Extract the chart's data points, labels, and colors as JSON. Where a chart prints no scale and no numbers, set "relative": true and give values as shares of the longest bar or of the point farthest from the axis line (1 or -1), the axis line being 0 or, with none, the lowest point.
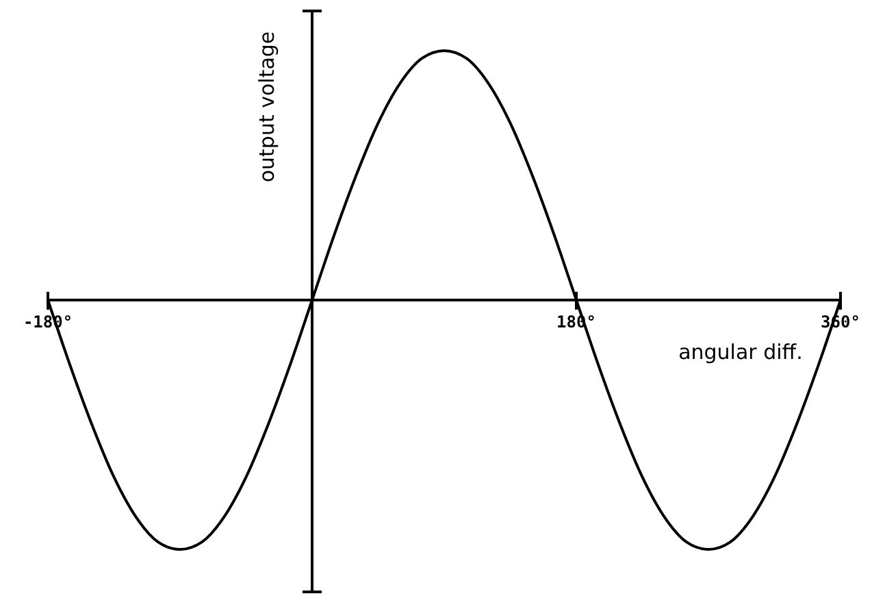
{
  "chart_data": {
    "type": "line",
    "xlabel": "angular diff.",
    "ylabel": "output voltage",
    "relative": true,
    "color": "#000000",
    "x": [
      -180,
      -165,
      -150,
      -135,
      -120,
      -105,
      -90,
      -75,
      -60,
      -45,
      -30,
      -15,
      0,
      15,
      30,
      45,
      60,
      75,
      90,
      105,
      120,
      135,
      150,
      165,
      180,
      195,
      210,
      225,
      240,
      255,
      270,
      285,
      300,
      315,
      330,
      345,
      360
    ],
    "values": [
      0,
      -0.26,
      -0.5,
      -0.71,
      -0.87,
      -0.97,
      -1,
      -0.97,
      -0.87,
      -0.71,
      -0.5,
      -0.26,
      0,
      0.26,
      0.5,
      0.71,
      0.87,
      0.97,
      1,
      0.97,
      0.87,
      0.71,
      0.5,
      0.26,
      0,
      -0.26,
      -0.5,
      -0.71,
      -0.87,
      -0.97,
      -1,
      -0.97,
      -0.87,
      -0.71,
      -0.5,
      -0.26,
      0
    ],
    "xlim": [
      -180,
      360
    ],
    "xticks": [
      {
        "value": -180,
        "label": "-180°"
      },
      {
        "value": 180,
        "label": "180°"
      },
      {
        "value": 360,
        "label": "360°"
      }
    ]
  }
}
